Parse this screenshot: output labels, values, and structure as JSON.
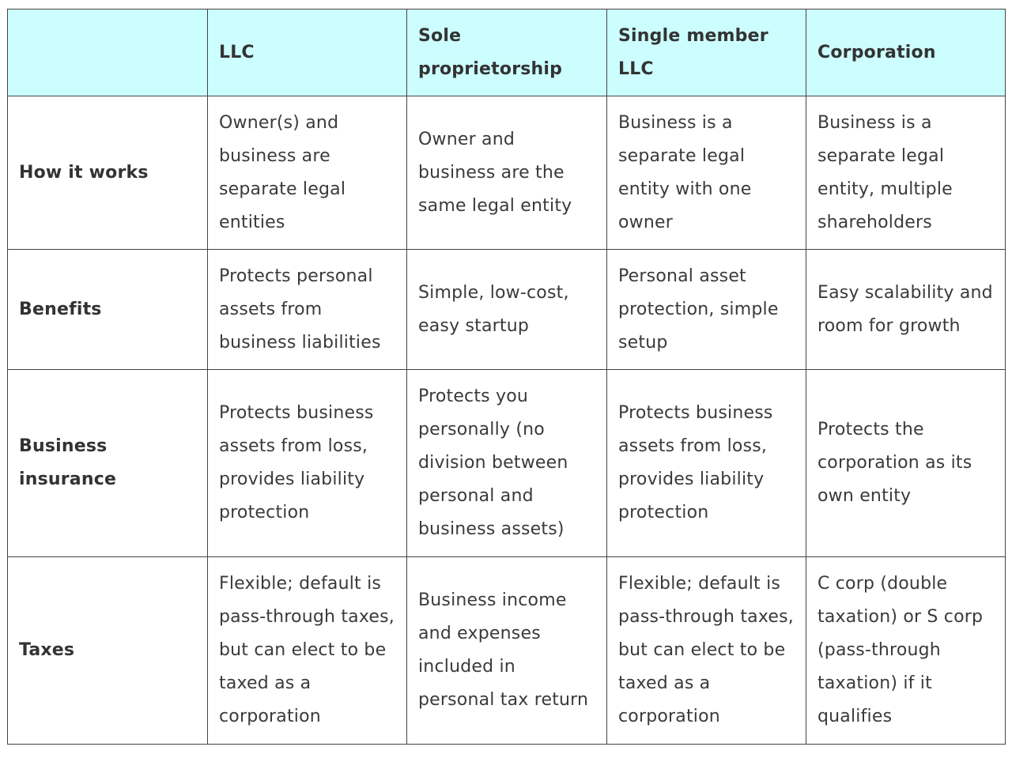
{
  "table": {
    "header_bg": "#ccfeff",
    "columns": [
      "",
      "LLC",
      "Sole proprietorship",
      "Single member LLC",
      "Corporation"
    ],
    "rows": [
      {
        "label": "How it works",
        "cells": [
          "Owner(s) and business are separate legal entities",
          "Owner and business are the same legal entity",
          "Business is a separate legal entity with one owner",
          "Business is a separate legal entity, multiple shareholders"
        ]
      },
      {
        "label": "Benefits",
        "cells": [
          "Protects personal assets from business liabilities",
          "Simple, low-cost, easy startup",
          "Personal asset protection, simple setup",
          "Easy scalability and room for growth"
        ]
      },
      {
        "label": "Business insurance",
        "cells": [
          "Protects business assets from loss, provides liability protection",
          "Protects you personally (no division between personal and business assets)",
          "Protects business assets from loss, provides liability protection",
          "Protects the corporation as its own entity"
        ]
      },
      {
        "label": "Taxes",
        "cells": [
          "Flexible; default is pass-through taxes, but can elect to be taxed as a corporation",
          "Business income and expenses included in personal tax return",
          "Flexible; default is pass-through taxes, but can elect to be taxed as a corporation",
          "C corp (double taxation) or S corp (pass-through taxation) if it qualifies"
        ]
      }
    ]
  }
}
